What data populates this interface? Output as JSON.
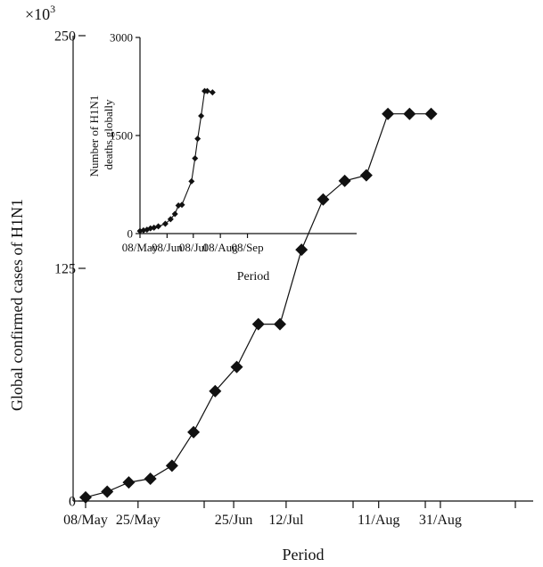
{
  "chart_data": [
    {
      "type": "line",
      "xlabel": "Period",
      "ylabel": "Global confirmed cases of H1N1",
      "y_scale_label": "×10",
      "y_scale_exp": "3",
      "ylim": [
        0,
        250
      ],
      "y_ticks": [
        "0",
        "125",
        "250"
      ],
      "x_ticks": [
        "08/May",
        "25/May",
        "25/Jun",
        "12/Jul",
        "11/Aug",
        "31/Aug"
      ],
      "series": [
        {
          "marker": "diamond",
          "x": [
            "08/May",
            "15/May",
            "22/May",
            "29/May",
            "05/Jun",
            "12/Jun",
            "19/Jun",
            "26/Jun",
            "03/Jul",
            "10/Jul",
            "17/Jul",
            "24/Jul",
            "31/Jul",
            "07/Aug",
            "14/Aug",
            "21/Aug",
            "28/Aug"
          ],
          "values": [
            2,
            5,
            10,
            12,
            19,
            37,
            59,
            72,
            95,
            95,
            135,
            162,
            172,
            175,
            208,
            208,
            208
          ]
        }
      ]
    },
    {
      "type": "line",
      "inset": true,
      "xlabel": "Period",
      "ylabel_line1": "Number of H1N1",
      "ylabel_line2": "deaths globally",
      "ylim": [
        0,
        3000
      ],
      "y_ticks": [
        "0",
        "1500",
        "3000"
      ],
      "x_ticks": [
        "08/May",
        "08/Jun",
        "08/Jul",
        "08/Aug",
        "08/Sep"
      ],
      "series": [
        {
          "marker": "diamond",
          "x": [
            "08/May",
            "12/May",
            "16/May",
            "20/May",
            "24/May",
            "29/May",
            "06/Jun",
            "12/Jun",
            "17/Jun",
            "21/Jun",
            "25/Jun",
            "06/Jul",
            "10/Jul",
            "13/Jul",
            "17/Jul",
            "21/Jul",
            "24/Jul",
            "30/Jul"
          ],
          "values": [
            40,
            50,
            60,
            80,
            90,
            110,
            150,
            220,
            300,
            430,
            440,
            800,
            1150,
            1450,
            1800,
            2180,
            2180,
            2160
          ]
        }
      ]
    }
  ]
}
